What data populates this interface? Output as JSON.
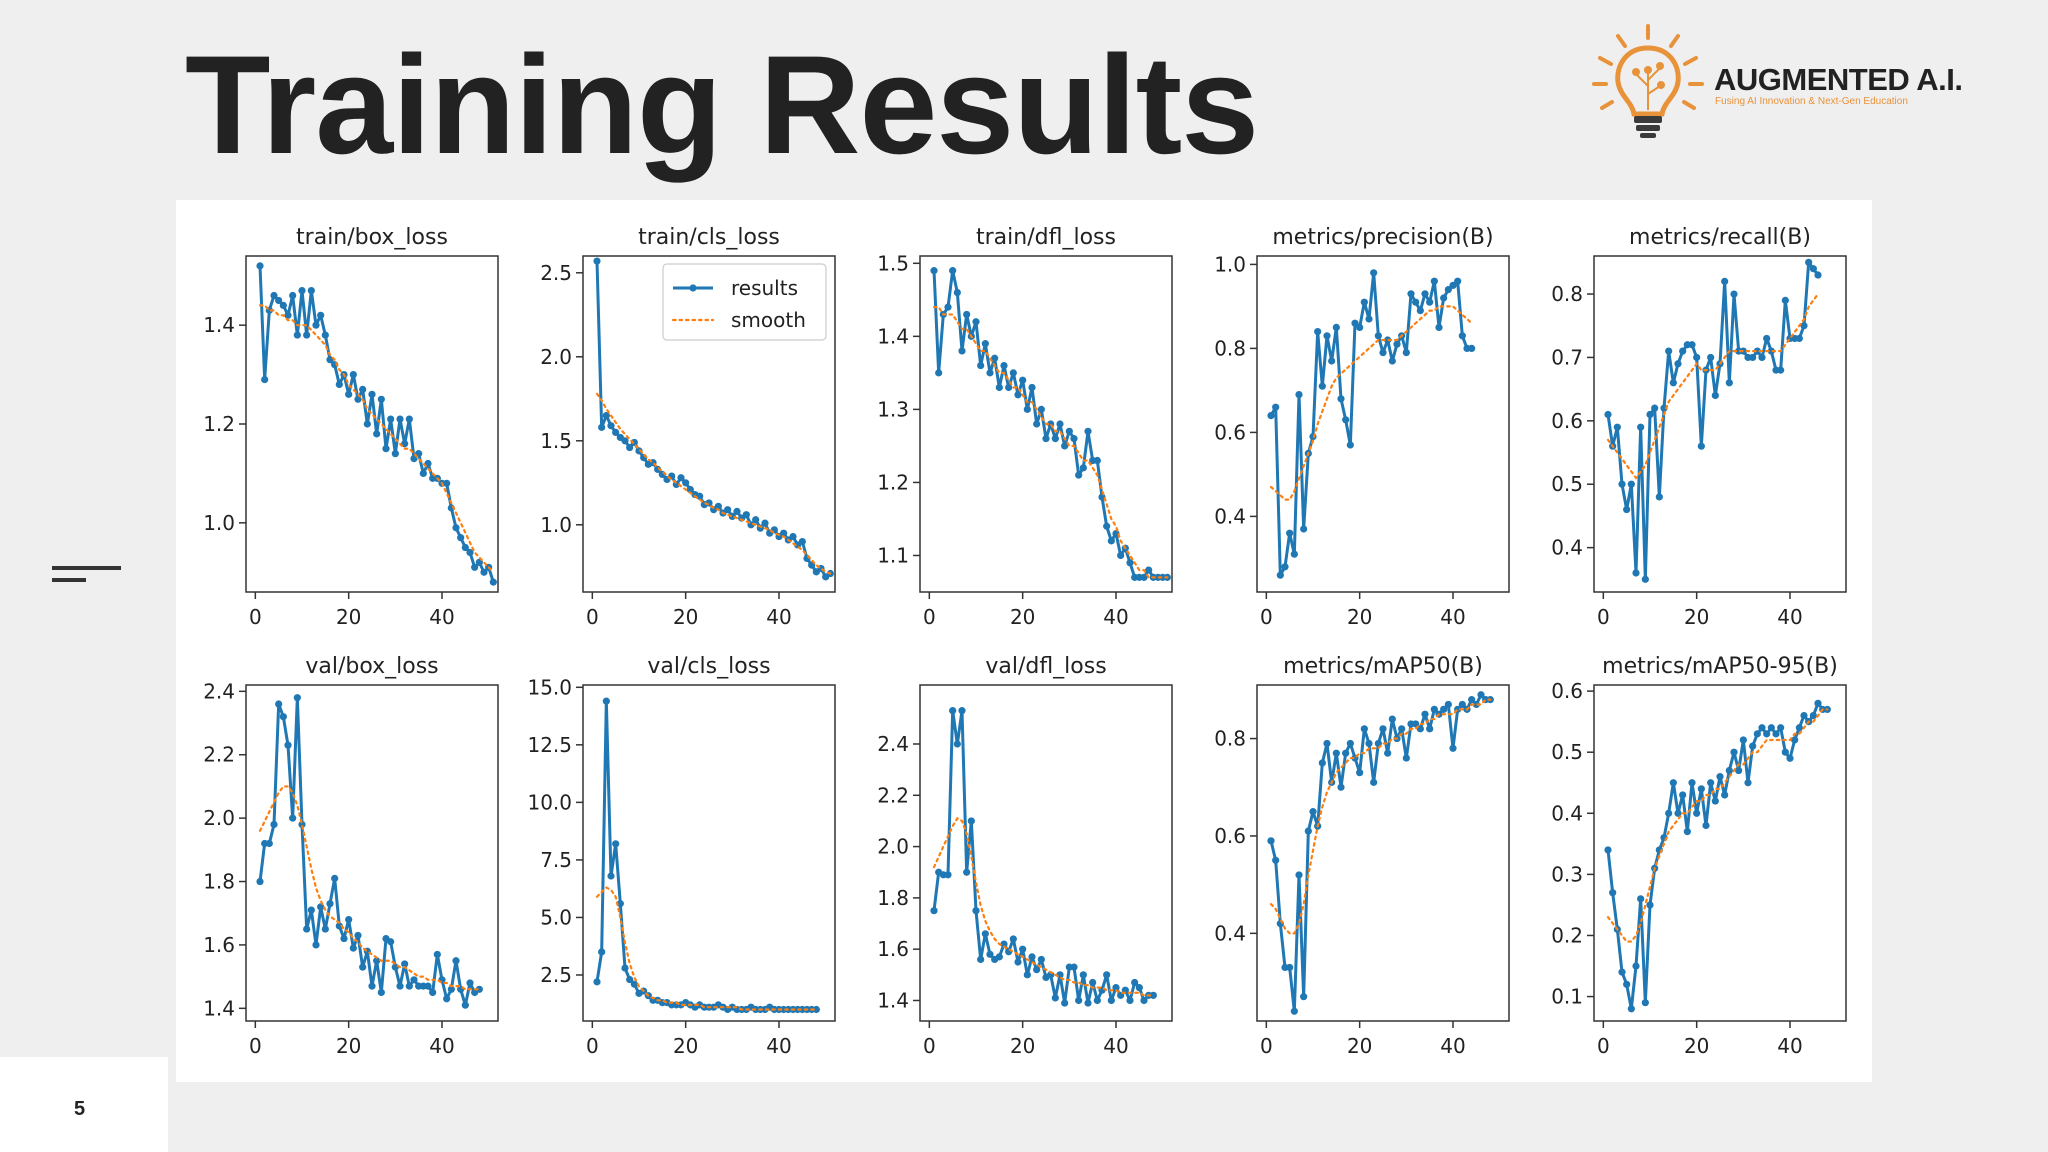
{
  "slide": {
    "title": "Training Results",
    "page_number": "5",
    "logo": {
      "name": "AUGMENTED A.I.",
      "tagline": "Fusing AI Innovation & Next-Gen Education"
    }
  },
  "legend": {
    "series": [
      "results",
      "smooth"
    ]
  },
  "colors": {
    "results": "#1f77b4",
    "smooth": "#ff7f0e",
    "axis": "#333333"
  },
  "chart_data": [
    {
      "type": "line",
      "title": "train/box_loss",
      "xlim": [
        -2,
        52
      ],
      "ylim": [
        0.86,
        1.54
      ],
      "xticks": [
        0,
        20,
        40
      ],
      "yticks": [
        1.0,
        1.2,
        1.4
      ],
      "ytick_labels": [
        "1.0",
        "1.2",
        "1.4"
      ],
      "values": [
        1.52,
        1.29,
        1.43,
        1.46,
        1.45,
        1.44,
        1.42,
        1.46,
        1.38,
        1.47,
        1.38,
        1.47,
        1.4,
        1.42,
        1.38,
        1.33,
        1.32,
        1.28,
        1.3,
        1.26,
        1.3,
        1.25,
        1.27,
        1.2,
        1.26,
        1.18,
        1.25,
        1.15,
        1.21,
        1.14,
        1.21,
        1.16,
        1.21,
        1.13,
        1.14,
        1.1,
        1.12,
        1.09,
        1.09,
        1.08,
        1.08,
        1.03,
        0.99,
        0.97,
        0.95,
        0.94,
        0.91,
        0.92,
        0.9,
        0.91,
        0.88
      ],
      "smooth": [
        1.44,
        1.44,
        1.43,
        1.43,
        1.42,
        1.42,
        1.41,
        1.41,
        1.4,
        1.4,
        1.4,
        1.39,
        1.38,
        1.37,
        1.36,
        1.34,
        1.33,
        1.31,
        1.3,
        1.28,
        1.27,
        1.26,
        1.25,
        1.23,
        1.22,
        1.21,
        1.2,
        1.19,
        1.18,
        1.17,
        1.16,
        1.15,
        1.15,
        1.14,
        1.13,
        1.12,
        1.11,
        1.1,
        1.09,
        1.08,
        1.06,
        1.04,
        1.02,
        1.0,
        0.98,
        0.96,
        0.94,
        0.93,
        0.92,
        0.91,
        0.9
      ]
    },
    {
      "type": "line",
      "title": "train/cls_loss",
      "xlim": [
        -2,
        52
      ],
      "ylim": [
        0.6,
        2.6
      ],
      "xticks": [
        0,
        20,
        40
      ],
      "yticks": [
        1.0,
        1.5,
        2.0,
        2.5
      ],
      "ytick_labels": [
        "1.0",
        "1.5",
        "2.0",
        "2.5"
      ],
      "legend": true,
      "values": [
        2.57,
        1.58,
        1.65,
        1.59,
        1.55,
        1.52,
        1.5,
        1.46,
        1.49,
        1.44,
        1.4,
        1.36,
        1.37,
        1.33,
        1.3,
        1.27,
        1.29,
        1.24,
        1.28,
        1.25,
        1.21,
        1.18,
        1.17,
        1.12,
        1.13,
        1.09,
        1.11,
        1.07,
        1.09,
        1.05,
        1.08,
        1.04,
        1.06,
        1.0,
        1.03,
        0.98,
        1.01,
        0.95,
        0.97,
        0.93,
        0.95,
        0.91,
        0.93,
        0.88,
        0.9,
        0.8,
        0.76,
        0.72,
        0.74,
        0.69,
        0.71
      ],
      "smooth": [
        1.78,
        1.74,
        1.69,
        1.65,
        1.61,
        1.57,
        1.54,
        1.51,
        1.48,
        1.45,
        1.42,
        1.39,
        1.37,
        1.34,
        1.32,
        1.29,
        1.27,
        1.25,
        1.23,
        1.21,
        1.19,
        1.17,
        1.15,
        1.13,
        1.12,
        1.1,
        1.09,
        1.07,
        1.06,
        1.05,
        1.04,
        1.03,
        1.02,
        1.01,
        1.0,
        0.99,
        0.98,
        0.97,
        0.95,
        0.94,
        0.93,
        0.91,
        0.89,
        0.87,
        0.85,
        0.82,
        0.79,
        0.76,
        0.74,
        0.72,
        0.71
      ]
    },
    {
      "type": "line",
      "title": "train/dfl_loss",
      "xlim": [
        -2,
        52
      ],
      "ylim": [
        1.05,
        1.51
      ],
      "xticks": [
        0,
        20,
        40
      ],
      "yticks": [
        1.1,
        1.2,
        1.3,
        1.4,
        1.5
      ],
      "ytick_labels": [
        "1.1",
        "1.2",
        "1.3",
        "1.4",
        "1.5"
      ],
      "values": [
        1.49,
        1.35,
        1.43,
        1.44,
        1.49,
        1.46,
        1.38,
        1.43,
        1.4,
        1.42,
        1.36,
        1.39,
        1.35,
        1.37,
        1.33,
        1.36,
        1.33,
        1.35,
        1.32,
        1.34,
        1.3,
        1.33,
        1.28,
        1.3,
        1.26,
        1.28,
        1.26,
        1.28,
        1.25,
        1.27,
        1.26,
        1.21,
        1.22,
        1.27,
        1.23,
        1.23,
        1.18,
        1.14,
        1.12,
        1.13,
        1.1,
        1.11,
        1.09,
        1.07,
        1.07,
        1.07,
        1.08,
        1.07,
        1.07,
        1.07,
        1.07
      ],
      "smooth": [
        1.44,
        1.44,
        1.43,
        1.43,
        1.43,
        1.42,
        1.41,
        1.41,
        1.4,
        1.39,
        1.38,
        1.38,
        1.37,
        1.36,
        1.35,
        1.35,
        1.34,
        1.33,
        1.33,
        1.32,
        1.31,
        1.31,
        1.3,
        1.29,
        1.28,
        1.28,
        1.27,
        1.27,
        1.26,
        1.25,
        1.25,
        1.24,
        1.23,
        1.23,
        1.22,
        1.21,
        1.19,
        1.17,
        1.15,
        1.14,
        1.12,
        1.11,
        1.1,
        1.09,
        1.08,
        1.08,
        1.07,
        1.07,
        1.07,
        1.07,
        1.07
      ]
    },
    {
      "type": "line",
      "title": "metrics/precision(B)",
      "xlim": [
        -2,
        52
      ],
      "ylim": [
        0.22,
        1.02
      ],
      "xticks": [
        0,
        20,
        40
      ],
      "yticks": [
        0.4,
        0.6,
        0.8,
        1.0
      ],
      "ytick_labels": [
        "0.4",
        "0.6",
        "0.8",
        "1.0"
      ],
      "values": [
        0.64,
        0.66,
        0.26,
        0.28,
        0.36,
        0.31,
        0.69,
        0.37,
        0.55,
        0.59,
        0.84,
        0.71,
        0.83,
        0.77,
        0.85,
        0.68,
        0.63,
        0.57,
        0.86,
        0.85,
        0.91,
        0.87,
        0.98,
        0.83,
        0.79,
        0.82,
        0.77,
        0.81,
        0.83,
        0.79,
        0.93,
        0.91,
        0.89,
        0.93,
        0.91,
        0.96,
        0.85,
        0.92,
        0.94,
        0.95,
        0.96,
        0.83,
        0.8,
        0.8
      ],
      "smooth": [
        0.47,
        0.46,
        0.45,
        0.44,
        0.44,
        0.46,
        0.49,
        0.52,
        0.55,
        0.58,
        0.62,
        0.65,
        0.68,
        0.71,
        0.73,
        0.74,
        0.75,
        0.76,
        0.77,
        0.78,
        0.79,
        0.8,
        0.81,
        0.82,
        0.82,
        0.82,
        0.82,
        0.82,
        0.83,
        0.84,
        0.85,
        0.86,
        0.87,
        0.88,
        0.89,
        0.89,
        0.9,
        0.9,
        0.9,
        0.9,
        0.89,
        0.88,
        0.87,
        0.86
      ]
    },
    {
      "type": "line",
      "title": "metrics/recall(B)",
      "xlim": [
        -2,
        52
      ],
      "ylim": [
        0.33,
        0.86
      ],
      "xticks": [
        0,
        20,
        40
      ],
      "yticks": [
        0.4,
        0.5,
        0.6,
        0.7,
        0.8
      ],
      "ytick_labels": [
        "0.4",
        "0.5",
        "0.6",
        "0.7",
        "0.8"
      ],
      "values": [
        0.61,
        0.56,
        0.59,
        0.5,
        0.46,
        0.5,
        0.36,
        0.59,
        0.35,
        0.61,
        0.62,
        0.48,
        0.62,
        0.71,
        0.66,
        0.69,
        0.71,
        0.72,
        0.72,
        0.7,
        0.56,
        0.68,
        0.7,
        0.64,
        0.69,
        0.82,
        0.66,
        0.8,
        0.71,
        0.71,
        0.7,
        0.7,
        0.71,
        0.7,
        0.73,
        0.71,
        0.68,
        0.68,
        0.79,
        0.73,
        0.73,
        0.73,
        0.75,
        0.85,
        0.84,
        0.83
      ],
      "smooth": [
        0.57,
        0.56,
        0.55,
        0.54,
        0.53,
        0.52,
        0.51,
        0.52,
        0.53,
        0.55,
        0.57,
        0.59,
        0.61,
        0.63,
        0.64,
        0.65,
        0.66,
        0.67,
        0.68,
        0.69,
        0.68,
        0.68,
        0.68,
        0.68,
        0.69,
        0.7,
        0.71,
        0.71,
        0.71,
        0.71,
        0.71,
        0.71,
        0.71,
        0.71,
        0.71,
        0.71,
        0.71,
        0.71,
        0.72,
        0.73,
        0.74,
        0.75,
        0.76,
        0.78,
        0.79,
        0.8
      ]
    },
    {
      "type": "line",
      "title": "val/box_loss",
      "xlim": [
        -2,
        52
      ],
      "ylim": [
        1.36,
        2.42
      ],
      "xticks": [
        0,
        20,
        40
      ],
      "yticks": [
        1.4,
        1.6,
        1.8,
        2.0,
        2.2,
        2.4
      ],
      "ytick_labels": [
        "1.4",
        "1.6",
        "1.8",
        "2.0",
        "2.2",
        "2.4"
      ],
      "values": [
        1.8,
        1.92,
        1.92,
        1.98,
        2.36,
        2.32,
        2.23,
        2.0,
        2.38,
        1.98,
        1.65,
        1.71,
        1.6,
        1.72,
        1.65,
        1.73,
        1.81,
        1.66,
        1.62,
        1.68,
        1.59,
        1.63,
        1.53,
        1.58,
        1.47,
        1.55,
        1.45,
        1.62,
        1.61,
        1.53,
        1.47,
        1.54,
        1.47,
        1.49,
        1.47,
        1.47,
        1.47,
        1.45,
        1.57,
        1.49,
        1.43,
        1.46,
        1.55,
        1.46,
        1.41,
        1.48,
        1.45,
        1.46
      ],
      "smooth": [
        1.96,
        1.99,
        2.02,
        2.05,
        2.08,
        2.1,
        2.1,
        2.08,
        2.04,
        1.98,
        1.91,
        1.84,
        1.78,
        1.74,
        1.71,
        1.69,
        1.68,
        1.67,
        1.65,
        1.64,
        1.62,
        1.61,
        1.59,
        1.58,
        1.57,
        1.56,
        1.55,
        1.55,
        1.55,
        1.54,
        1.53,
        1.53,
        1.52,
        1.51,
        1.5,
        1.5,
        1.49,
        1.49,
        1.49,
        1.48,
        1.48,
        1.47,
        1.47,
        1.47,
        1.46,
        1.46,
        1.46,
        1.46
      ]
    },
    {
      "type": "line",
      "title": "val/cls_loss",
      "xlim": [
        -2,
        52
      ],
      "ylim": [
        0.5,
        15.1
      ],
      "xticks": [
        0,
        20,
        40
      ],
      "yticks": [
        2.5,
        5.0,
        7.5,
        10.0,
        12.5,
        15.0
      ],
      "ytick_labels": [
        "2.5",
        "5.0",
        "7.5",
        "10.0",
        "12.5",
        "15.0"
      ],
      "values": [
        2.2,
        3.5,
        14.4,
        6.8,
        8.2,
        5.6,
        2.8,
        2.3,
        2.1,
        1.7,
        1.8,
        1.6,
        1.4,
        1.4,
        1.3,
        1.3,
        1.2,
        1.2,
        1.2,
        1.3,
        1.2,
        1.1,
        1.2,
        1.1,
        1.1,
        1.1,
        1.2,
        1.1,
        1.0,
        1.1,
        1.0,
        1.0,
        1.0,
        1.1,
        1.0,
        1.0,
        1.0,
        1.1,
        1.0,
        1.0,
        1.0,
        1.0,
        1.0,
        1.0,
        1.0,
        1.0,
        1.0,
        1.0
      ],
      "smooth": [
        5.9,
        6.1,
        6.3,
        6.2,
        5.9,
        5.0,
        3.9,
        3.0,
        2.4,
        2.0,
        1.8,
        1.6,
        1.5,
        1.4,
        1.4,
        1.3,
        1.3,
        1.3,
        1.2,
        1.2,
        1.2,
        1.2,
        1.2,
        1.1,
        1.1,
        1.1,
        1.1,
        1.1,
        1.1,
        1.1,
        1.1,
        1.0,
        1.0,
        1.0,
        1.0,
        1.0,
        1.0,
        1.0,
        1.0,
        1.0,
        1.0,
        1.0,
        1.0,
        1.0,
        1.0,
        1.0,
        1.0,
        1.0
      ]
    },
    {
      "type": "line",
      "title": "val/dfl_loss",
      "xlim": [
        -2,
        52
      ],
      "ylim": [
        1.32,
        2.63
      ],
      "xticks": [
        0,
        20,
        40
      ],
      "yticks": [
        1.4,
        1.6,
        1.8,
        2.0,
        2.2,
        2.4
      ],
      "ytick_labels": [
        "1.4",
        "1.6",
        "1.8",
        "2.0",
        "2.2",
        "2.4"
      ],
      "values": [
        1.75,
        1.9,
        1.89,
        1.89,
        2.53,
        2.4,
        2.53,
        1.9,
        2.1,
        1.75,
        1.56,
        1.66,
        1.58,
        1.56,
        1.57,
        1.62,
        1.59,
        1.64,
        1.55,
        1.6,
        1.5,
        1.57,
        1.52,
        1.56,
        1.49,
        1.5,
        1.41,
        1.5,
        1.39,
        1.53,
        1.53,
        1.4,
        1.5,
        1.39,
        1.47,
        1.4,
        1.44,
        1.5,
        1.4,
        1.45,
        1.42,
        1.44,
        1.4,
        1.47,
        1.45,
        1.4,
        1.42,
        1.42
      ],
      "smooth": [
        1.92,
        1.96,
        2.0,
        2.04,
        2.08,
        2.11,
        2.1,
        2.05,
        1.96,
        1.86,
        1.77,
        1.71,
        1.67,
        1.64,
        1.62,
        1.61,
        1.6,
        1.59,
        1.58,
        1.57,
        1.56,
        1.55,
        1.54,
        1.53,
        1.52,
        1.51,
        1.5,
        1.49,
        1.48,
        1.48,
        1.47,
        1.47,
        1.46,
        1.46,
        1.45,
        1.45,
        1.45,
        1.44,
        1.44,
        1.44,
        1.43,
        1.43,
        1.43,
        1.43,
        1.43,
        1.42,
        1.42,
        1.42
      ]
    },
    {
      "type": "line",
      "title": "metrics/mAP50(B)",
      "xlim": [
        -2,
        52
      ],
      "ylim": [
        0.22,
        0.91
      ],
      "xticks": [
        0,
        20,
        40
      ],
      "yticks": [
        0.4,
        0.6,
        0.8
      ],
      "ytick_labels": [
        "0.4",
        "0.6",
        "0.8"
      ],
      "values": [
        0.59,
        0.55,
        0.42,
        0.33,
        0.33,
        0.24,
        0.52,
        0.27,
        0.61,
        0.65,
        0.62,
        0.75,
        0.79,
        0.71,
        0.77,
        0.7,
        0.77,
        0.79,
        0.76,
        0.73,
        0.82,
        0.79,
        0.71,
        0.79,
        0.82,
        0.77,
        0.84,
        0.8,
        0.82,
        0.76,
        0.83,
        0.83,
        0.82,
        0.85,
        0.82,
        0.86,
        0.85,
        0.86,
        0.87,
        0.78,
        0.86,
        0.87,
        0.86,
        0.88,
        0.87,
        0.89,
        0.88,
        0.88
      ],
      "smooth": [
        0.46,
        0.45,
        0.43,
        0.41,
        0.4,
        0.4,
        0.42,
        0.46,
        0.52,
        0.57,
        0.62,
        0.66,
        0.69,
        0.71,
        0.73,
        0.74,
        0.75,
        0.76,
        0.76,
        0.77,
        0.77,
        0.78,
        0.78,
        0.78,
        0.79,
        0.79,
        0.8,
        0.8,
        0.81,
        0.81,
        0.82,
        0.82,
        0.83,
        0.83,
        0.84,
        0.84,
        0.85,
        0.85,
        0.85,
        0.85,
        0.86,
        0.86,
        0.86,
        0.87,
        0.87,
        0.87,
        0.88,
        0.88
      ]
    },
    {
      "type": "line",
      "title": "metrics/mAP50-95(B)",
      "xlim": [
        -2,
        52
      ],
      "ylim": [
        0.06,
        0.61
      ],
      "xticks": [
        0,
        20,
        40
      ],
      "yticks": [
        0.1,
        0.2,
        0.3,
        0.4,
        0.5,
        0.6
      ],
      "ytick_labels": [
        "0.1",
        "0.2",
        "0.3",
        "0.4",
        "0.5",
        "0.6"
      ],
      "values": [
        0.34,
        0.27,
        0.21,
        0.14,
        0.12,
        0.08,
        0.15,
        0.26,
        0.09,
        0.25,
        0.31,
        0.34,
        0.36,
        0.4,
        0.45,
        0.4,
        0.43,
        0.37,
        0.45,
        0.4,
        0.44,
        0.38,
        0.45,
        0.42,
        0.46,
        0.43,
        0.47,
        0.5,
        0.47,
        0.52,
        0.45,
        0.51,
        0.53,
        0.54,
        0.53,
        0.54,
        0.53,
        0.54,
        0.5,
        0.49,
        0.52,
        0.54,
        0.56,
        0.55,
        0.56,
        0.58,
        0.57,
        0.57
      ],
      "smooth": [
        0.23,
        0.22,
        0.21,
        0.2,
        0.19,
        0.19,
        0.2,
        0.22,
        0.25,
        0.28,
        0.31,
        0.33,
        0.35,
        0.37,
        0.38,
        0.39,
        0.4,
        0.4,
        0.41,
        0.42,
        0.42,
        0.43,
        0.43,
        0.44,
        0.44,
        0.45,
        0.46,
        0.47,
        0.48,
        0.48,
        0.49,
        0.5,
        0.5,
        0.51,
        0.52,
        0.52,
        0.52,
        0.52,
        0.52,
        0.52,
        0.53,
        0.53,
        0.54,
        0.55,
        0.55,
        0.56,
        0.57,
        0.57
      ]
    }
  ]
}
